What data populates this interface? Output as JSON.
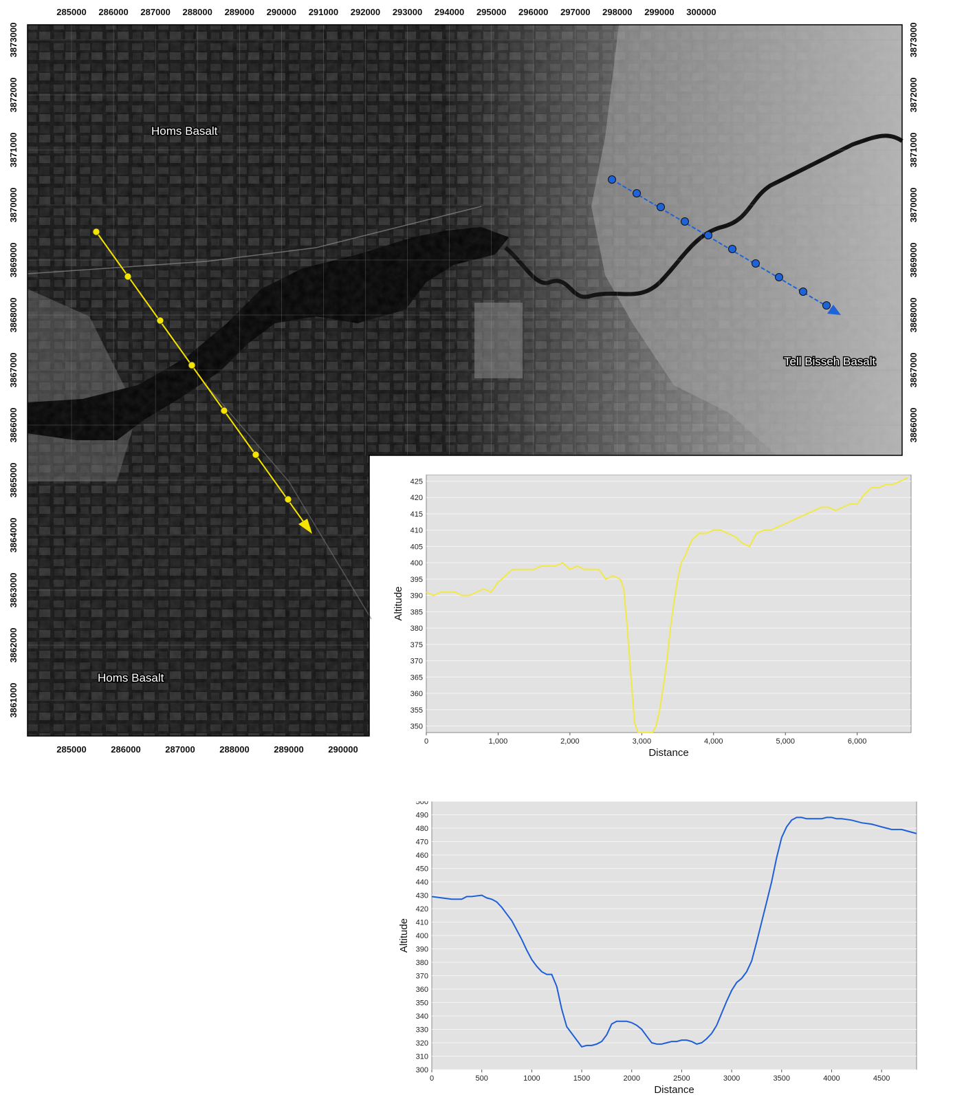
{
  "map": {
    "top_x_ticks": [
      "285000",
      "286000",
      "287000",
      "288000",
      "289000",
      "290000",
      "291000",
      "292000",
      "293000",
      "294000",
      "295000",
      "296000",
      "297000",
      "298000",
      "299000",
      "300000"
    ],
    "bottom_x_ticks": [
      "285000",
      "286000",
      "287000",
      "288000",
      "289000",
      "290000"
    ],
    "left_y_ticks": [
      "3873000",
      "3872000",
      "3871000",
      "3870000",
      "3869000",
      "3868000",
      "3867000",
      "3866000",
      "3865000",
      "3864000",
      "3863000",
      "3862000",
      "3861000"
    ],
    "right_y_ticks": [
      "3873000",
      "3872000",
      "3871000",
      "3870000",
      "3869000",
      "3868000",
      "3867000",
      "3866000"
    ],
    "labels": {
      "homs_basalt_top": "Homs Basalt",
      "homs_basalt_bottom": "Homs Basalt",
      "tell_bisseh_basalt": "Tell Bisseh Basalt"
    },
    "profile_colors": {
      "yellow": "#f5e400",
      "blue": "#1f63d8"
    }
  },
  "chart_data": [
    {
      "type": "line",
      "xlabel": "Distance",
      "ylabel": "Altitude",
      "xlim": [
        0,
        6750
      ],
      "ylim": [
        348,
        427
      ],
      "x_ticks": [
        "0",
        "1,000",
        "2,000",
        "3,000",
        "4,000",
        "5,000",
        "6,000"
      ],
      "y_ticks": [
        "350",
        "355",
        "360",
        "365",
        "370",
        "375",
        "380",
        "385",
        "390",
        "395",
        "400",
        "405",
        "410",
        "415",
        "420",
        "425"
      ],
      "series": [
        {
          "color": "#f1e84a",
          "x": [
            0,
            100,
            200,
            300,
            400,
            500,
            600,
            700,
            800,
            900,
            1000,
            1100,
            1200,
            1300,
            1400,
            1500,
            1600,
            1700,
            1800,
            1900,
            2000,
            2100,
            2200,
            2300,
            2400,
            2500,
            2600,
            2700,
            2750,
            2800,
            2850,
            2900,
            2950,
            3000,
            3050,
            3100,
            3150,
            3200,
            3250,
            3300,
            3350,
            3400,
            3450,
            3500,
            3550,
            3600,
            3700,
            3800,
            3900,
            4000,
            4100,
            4200,
            4300,
            4400,
            4500,
            4600,
            4700,
            4800,
            4900,
            5000,
            5100,
            5200,
            5300,
            5400,
            5500,
            5600,
            5700,
            5800,
            5900,
            6000,
            6100,
            6200,
            6300,
            6400,
            6500,
            6600,
            6700
          ],
          "y": [
            391,
            390,
            391,
            391,
            391,
            390,
            390,
            391,
            392,
            391,
            394,
            396,
            398,
            398,
            398,
            398,
            399,
            399,
            399,
            400,
            398,
            399,
            398,
            398,
            398,
            395,
            396,
            395,
            392,
            380,
            365,
            351,
            348,
            348,
            348,
            348,
            348,
            350,
            355,
            362,
            370,
            380,
            388,
            395,
            400,
            402,
            407,
            409,
            409,
            410,
            410,
            409,
            408,
            406,
            405,
            409,
            410,
            410,
            411,
            412,
            413,
            414,
            415,
            416,
            417,
            417,
            416,
            417,
            418,
            418,
            421,
            423,
            423,
            424,
            424,
            425,
            426
          ]
        }
      ]
    },
    {
      "type": "line",
      "xlabel": "Distance",
      "ylabel": "Altitude",
      "xlim": [
        0,
        4850
      ],
      "ylim": [
        300,
        500
      ],
      "x_ticks": [
        "0",
        "500",
        "1000",
        "1500",
        "2000",
        "2500",
        "3000",
        "3500",
        "4000",
        "4500"
      ],
      "y_ticks": [
        "300",
        "310",
        "320",
        "330",
        "340",
        "350",
        "360",
        "370",
        "380",
        "390",
        "400",
        "410",
        "420",
        "430",
        "440",
        "450",
        "460",
        "470",
        "480",
        "490",
        "500"
      ],
      "series": [
        {
          "color": "#1f5fd6",
          "x": [
            0,
            100,
            200,
            300,
            350,
            400,
            500,
            550,
            600,
            650,
            700,
            750,
            800,
            850,
            900,
            950,
            1000,
            1050,
            1100,
            1150,
            1200,
            1250,
            1300,
            1350,
            1400,
            1450,
            1500,
            1550,
            1600,
            1650,
            1700,
            1750,
            1800,
            1850,
            1900,
            1950,
            2000,
            2050,
            2100,
            2150,
            2200,
            2250,
            2300,
            2350,
            2400,
            2450,
            2500,
            2550,
            2600,
            2650,
            2700,
            2750,
            2800,
            2850,
            2900,
            2950,
            3000,
            3050,
            3100,
            3150,
            3200,
            3250,
            3300,
            3350,
            3400,
            3450,
            3500,
            3550,
            3600,
            3650,
            3700,
            3750,
            3800,
            3850,
            3900,
            3950,
            4000,
            4050,
            4100,
            4200,
            4300,
            4400,
            4500,
            4600,
            4700,
            4800,
            4850
          ],
          "y": [
            429,
            428,
            427,
            427,
            429,
            429,
            430,
            428,
            427,
            425,
            421,
            416,
            411,
            404,
            397,
            389,
            382,
            377,
            373,
            371,
            371,
            362,
            345,
            332,
            327,
            322,
            317,
            318,
            318,
            319,
            321,
            326,
            334,
            336,
            336,
            336,
            335,
            333,
            330,
            325,
            320,
            319,
            319,
            320,
            321,
            321,
            322,
            322,
            321,
            319,
            320,
            323,
            327,
            333,
            342,
            351,
            359,
            365,
            368,
            373,
            381,
            395,
            410,
            425,
            440,
            458,
            473,
            481,
            486,
            488,
            488,
            487,
            487,
            487,
            487,
            488,
            488,
            487,
            487,
            486,
            484,
            483,
            481,
            479,
            479,
            477,
            476
          ]
        }
      ]
    }
  ]
}
